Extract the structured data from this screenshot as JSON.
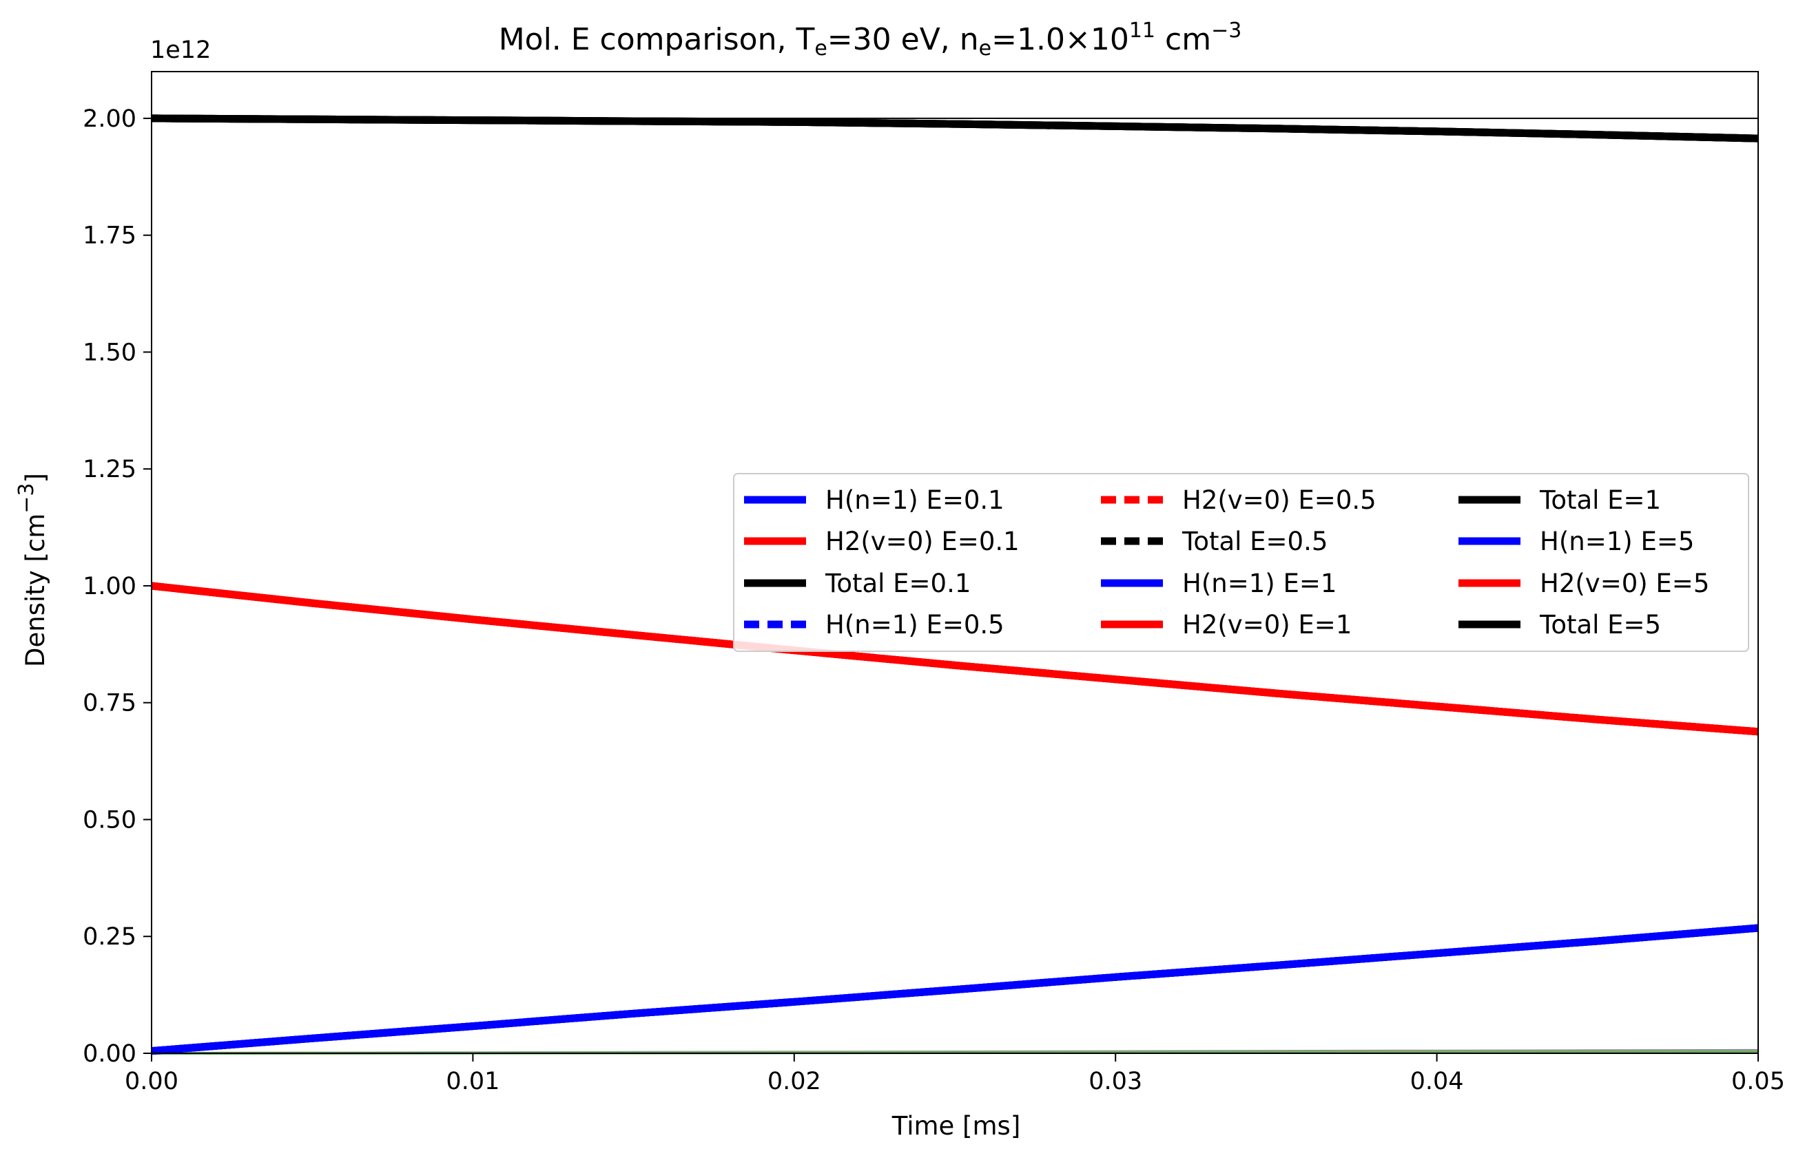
{
  "chart_data": {
    "type": "line",
    "title": {
      "prefix": "Mol. E comparison,  T",
      "te_sub": "e",
      "middle": "=30 eV, n",
      "ne_sub": "e",
      "after_ne": "=1.0×10",
      "exponent": "11",
      "unit": " cm",
      "unit_exponent": "−3"
    },
    "xlabel": "Time [ms]",
    "ylabel": {
      "text": "Density [cm",
      "exponent": "−3",
      "close": "]"
    },
    "y_scale_label": "1e12",
    "xlim": [
      0,
      0.05
    ],
    "ylim": [
      0,
      2100000000000.0
    ],
    "x_ticks": [
      0.0,
      0.01,
      0.02,
      0.03,
      0.04,
      0.05
    ],
    "x_tick_labels": [
      "0.00",
      "0.01",
      "0.02",
      "0.03",
      "0.04",
      "0.05"
    ],
    "y_ticks": [
      0,
      250000000000.0,
      500000000000.0,
      750000000000.0,
      1000000000000.0,
      1250000000000.0,
      1500000000000.0,
      1750000000000.0,
      2000000000000.0
    ],
    "y_tick_labels": [
      "0.00",
      "0.25",
      "0.50",
      "0.75",
      "1.00",
      "1.25",
      "1.50",
      "1.75",
      "2.00"
    ],
    "hline": {
      "y": 2000000000000.0,
      "color": "#000000"
    },
    "grid": false,
    "legend": {
      "placement": "center-right",
      "columns": 3
    },
    "x": [
      0.0,
      0.005,
      0.01,
      0.015,
      0.02,
      0.025,
      0.03,
      0.035,
      0.04,
      0.045,
      0.05
    ],
    "series": [
      {
        "name": "H(n=1) E=0.1",
        "color": "#0000ff",
        "style": "solid",
        "values": [
          5000000000.0,
          32000000000.0,
          58000000000.0,
          85000000000.0,
          110000000000.0,
          136000000000.0,
          163000000000.0,
          188000000000.0,
          214000000000.0,
          240000000000.0,
          268000000000.0
        ]
      },
      {
        "name": "H2(v=0) E=0.1",
        "color": "#ff0000",
        "style": "solid",
        "values": [
          1000000000000.0,
          963000000000.0,
          928000000000.0,
          895000000000.0,
          862000000000.0,
          830000000000.0,
          800000000000.0,
          770000000000.0,
          742000000000.0,
          714000000000.0,
          688000000000.0
        ]
      },
      {
        "name": "Total E=0.1",
        "color": "#000000",
        "style": "solid",
        "values": [
          2000000000000.0,
          1998000000000.0,
          1996000000000.0,
          1994000000000.0,
          1992000000000.0,
          1988000000000.0,
          1983000000000.0,
          1978000000000.0,
          1972000000000.0,
          1965000000000.0,
          1957000000000.0
        ]
      },
      {
        "name": "H(n=1) E=0.5",
        "color": "#0000ff",
        "style": "dashed",
        "values": [
          5000000000.0,
          32000000000.0,
          58000000000.0,
          85000000000.0,
          110000000000.0,
          136000000000.0,
          163000000000.0,
          188000000000.0,
          214000000000.0,
          240000000000.0,
          268000000000.0
        ]
      },
      {
        "name": "H2(v=0) E=0.5",
        "color": "#ff0000",
        "style": "dashed",
        "values": [
          1000000000000.0,
          963000000000.0,
          928000000000.0,
          895000000000.0,
          862000000000.0,
          830000000000.0,
          800000000000.0,
          770000000000.0,
          742000000000.0,
          714000000000.0,
          688000000000.0
        ]
      },
      {
        "name": "Total E=0.5",
        "color": "#000000",
        "style": "dashed",
        "values": [
          2000000000000.0,
          1998000000000.0,
          1996000000000.0,
          1994000000000.0,
          1992000000000.0,
          1988000000000.0,
          1983000000000.0,
          1978000000000.0,
          1972000000000.0,
          1965000000000.0,
          1957000000000.0
        ]
      },
      {
        "name": "H(n=1) E=1",
        "color": "#0000ff",
        "style": "solid",
        "values": [
          5000000000.0,
          32000000000.0,
          58000000000.0,
          85000000000.0,
          110000000000.0,
          136000000000.0,
          163000000000.0,
          188000000000.0,
          214000000000.0,
          240000000000.0,
          268000000000.0
        ]
      },
      {
        "name": "H2(v=0) E=1",
        "color": "#ff0000",
        "style": "solid",
        "values": [
          1000000000000.0,
          963000000000.0,
          928000000000.0,
          895000000000.0,
          862000000000.0,
          830000000000.0,
          800000000000.0,
          770000000000.0,
          742000000000.0,
          714000000000.0,
          688000000000.0
        ]
      },
      {
        "name": "Total E=1",
        "color": "#000000",
        "style": "solid",
        "values": [
          2000000000000.0,
          1998000000000.0,
          1996000000000.0,
          1994000000000.0,
          1992000000000.0,
          1988000000000.0,
          1983000000000.0,
          1978000000000.0,
          1972000000000.0,
          1965000000000.0,
          1957000000000.0
        ]
      },
      {
        "name": "H(n=1) E=5",
        "color": "#0000ff",
        "style": "solid",
        "values": [
          5000000000.0,
          32000000000.0,
          58000000000.0,
          85000000000.0,
          110000000000.0,
          136000000000.0,
          163000000000.0,
          188000000000.0,
          214000000000.0,
          240000000000.0,
          268000000000.0
        ]
      },
      {
        "name": "H2(v=0) E=5",
        "color": "#ff0000",
        "style": "solid",
        "values": [
          1000000000000.0,
          963000000000.0,
          928000000000.0,
          895000000000.0,
          862000000000.0,
          830000000000.0,
          800000000000.0,
          770000000000.0,
          742000000000.0,
          714000000000.0,
          688000000000.0
        ]
      },
      {
        "name": "Total E=5",
        "color": "#000000",
        "style": "solid",
        "values": [
          2000000000000.0,
          1998000000000.0,
          1996000000000.0,
          1994000000000.0,
          1992000000000.0,
          1988000000000.0,
          1983000000000.0,
          1978000000000.0,
          1972000000000.0,
          1965000000000.0,
          1957000000000.0
        ]
      }
    ],
    "minor_lines": [
      {
        "color": "#8080c0",
        "values": [
          0.0,
          600000000.0,
          1200000000.0,
          1800000000.0,
          2400000000.0,
          3000000000.0,
          3600000000.0,
          4200000000.0,
          4800000000.0,
          5400000000.0,
          6000000000.0
        ]
      },
      {
        "color": "#e0a040",
        "values": [
          0.0,
          400000000.0,
          800000000.0,
          1200000000.0,
          1600000000.0,
          2000000000.0,
          2400000000.0,
          2800000000.0,
          3200000000.0,
          3600000000.0,
          4000000000.0
        ]
      },
      {
        "color": "#60b060",
        "values": [
          0.0,
          300000000.0,
          600000000.0,
          900000000.0,
          1200000000.0,
          1500000000.0,
          1800000000.0,
          2100000000.0,
          2400000000.0,
          2700000000.0,
          3000000000.0
        ]
      }
    ]
  }
}
